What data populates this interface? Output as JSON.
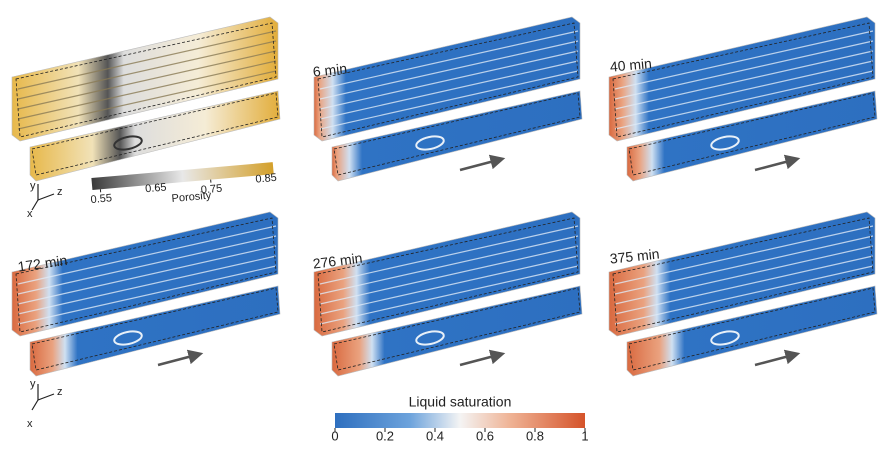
{
  "figure": {
    "porosity_panel": {
      "colorbar": {
        "label": "Porosity",
        "ticks": [
          0.55,
          0.65,
          0.75,
          0.85
        ]
      },
      "axes": {
        "y": "y",
        "z": "z",
        "x": "x"
      }
    },
    "saturation_panels": [
      {
        "time": "6 min"
      },
      {
        "time": "40 min"
      },
      {
        "time": "172 min"
      },
      {
        "time": "276 min"
      },
      {
        "time": "375 min"
      }
    ],
    "bottom_axes": {
      "y": "y",
      "z": "z",
      "x": "x"
    },
    "saturation_colorbar": {
      "label": "Liquid saturation",
      "ticks": [
        0,
        0.2,
        0.4,
        0.6,
        0.8,
        1
      ]
    }
  }
}
